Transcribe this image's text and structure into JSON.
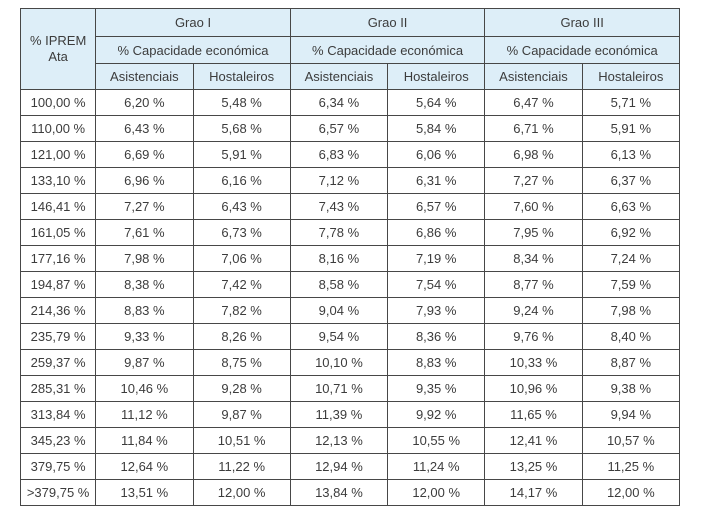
{
  "table": {
    "corner_header": "% IPREM\nAta",
    "groups": [
      {
        "label": "Grao I"
      },
      {
        "label": "Grao II"
      },
      {
        "label": "Grao III"
      }
    ],
    "subheader": "% Capacidade económica",
    "col_headers": [
      "Asistenciais",
      "Hostaleiros"
    ],
    "rows": [
      {
        "iprem": "100,00 %",
        "values": [
          "6,20 %",
          "5,48 %",
          "6,34 %",
          "5,64 %",
          "6,47 %",
          "5,71 %"
        ]
      },
      {
        "iprem": "110,00 %",
        "values": [
          "6,43 %",
          "5,68 %",
          "6,57 %",
          "5,84 %",
          "6,71 %",
          "5,91 %"
        ]
      },
      {
        "iprem": "121,00 %",
        "values": [
          "6,69 %",
          "5,91 %",
          "6,83 %",
          "6,06 %",
          "6,98 %",
          "6,13 %"
        ]
      },
      {
        "iprem": "133,10 %",
        "values": [
          "6,96 %",
          "6,16 %",
          "7,12 %",
          "6,31 %",
          "7,27 %",
          "6,37 %"
        ]
      },
      {
        "iprem": "146,41 %",
        "values": [
          "7,27 %",
          "6,43 %",
          "7,43 %",
          "6,57 %",
          "7,60 %",
          "6,63 %"
        ]
      },
      {
        "iprem": "161,05 %",
        "values": [
          "7,61 %",
          "6,73 %",
          "7,78 %",
          "6,86 %",
          "7,95 %",
          "6,92 %"
        ]
      },
      {
        "iprem": "177,16 %",
        "values": [
          "7,98 %",
          "7,06 %",
          "8,16 %",
          "7,19 %",
          "8,34 %",
          "7,24 %"
        ]
      },
      {
        "iprem": "194,87 %",
        "values": [
          "8,38 %",
          "7,42 %",
          "8,58 %",
          "7,54 %",
          "8,77 %",
          "7,59 %"
        ]
      },
      {
        "iprem": "214,36 %",
        "values": [
          "8,83 %",
          "7,82 %",
          "9,04 %",
          "7,93 %",
          "9,24 %",
          "7,98 %"
        ]
      },
      {
        "iprem": "235,79 %",
        "values": [
          "9,33 %",
          "8,26 %",
          "9,54 %",
          "8,36 %",
          "9,76 %",
          "8,40 %"
        ]
      },
      {
        "iprem": "259,37 %",
        "values": [
          "9,87 %",
          "8,75 %",
          "10,10 %",
          "8,83 %",
          "10,33 %",
          "8,87 %"
        ]
      },
      {
        "iprem": "285,31 %",
        "values": [
          "10,46 %",
          "9,28 %",
          "10,71 %",
          "9,35 %",
          "10,96 %",
          "9,38 %"
        ]
      },
      {
        "iprem": "313,84 %",
        "values": [
          "11,12 %",
          "9,87 %",
          "11,39 %",
          "9,92 %",
          "11,65 %",
          "9,94 %"
        ]
      },
      {
        "iprem": "345,23 %",
        "values": [
          "11,84 %",
          "10,51 %",
          "12,13 %",
          "10,55 %",
          "12,41 %",
          "10,57 %"
        ]
      },
      {
        "iprem": "379,75 %",
        "values": [
          "12,64 %",
          "11,22 %",
          "12,94 %",
          "11,24 %",
          "13,25 %",
          "11,25 %"
        ]
      },
      {
        "iprem": ">379,75 %",
        "values": [
          "13,51 %",
          "12,00 %",
          "13,84 %",
          "12,00 %",
          "14,17 %",
          "12,00 %"
        ]
      }
    ]
  },
  "colors": {
    "header_bg": "#ddeef8",
    "border": "#474747",
    "text": "#3c3c3c",
    "page_bg": "#ffffff"
  }
}
